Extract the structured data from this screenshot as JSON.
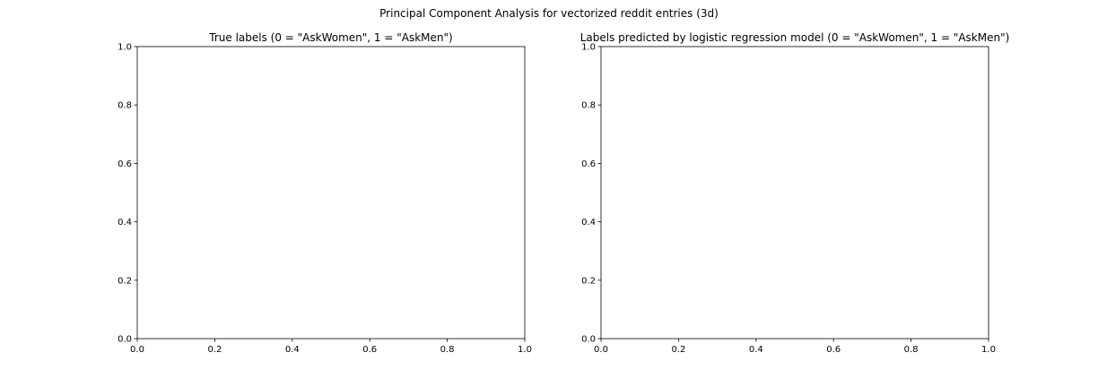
{
  "figure": {
    "suptitle": "Principal Component Analysis for vectorized reddit entries (3d)"
  },
  "chart_data": [
    {
      "type": "scatter",
      "title": "True labels (0 = \"AskWomen\", 1 = \"AskMen\")",
      "xlabel": "",
      "ylabel": "",
      "xlim": [
        0.0,
        1.0
      ],
      "ylim": [
        0.0,
        1.0
      ],
      "xticks": [
        "0.0",
        "0.2",
        "0.4",
        "0.6",
        "0.8",
        "1.0"
      ],
      "yticks": [
        "0.0",
        "0.2",
        "0.4",
        "0.6",
        "0.8",
        "1.0"
      ],
      "grid": false,
      "series": []
    },
    {
      "type": "scatter",
      "title": "Labels predicted by logistic regression model (0 = \"AskWomen\", 1 = \"AskMen\")",
      "xlabel": "",
      "ylabel": "",
      "xlim": [
        0.0,
        1.0
      ],
      "ylim": [
        0.0,
        1.0
      ],
      "xticks": [
        "0.0",
        "0.2",
        "0.4",
        "0.6",
        "0.8",
        "1.0"
      ],
      "yticks": [
        "0.0",
        "0.2",
        "0.4",
        "0.6",
        "0.8",
        "1.0"
      ],
      "grid": false,
      "series": []
    }
  ]
}
